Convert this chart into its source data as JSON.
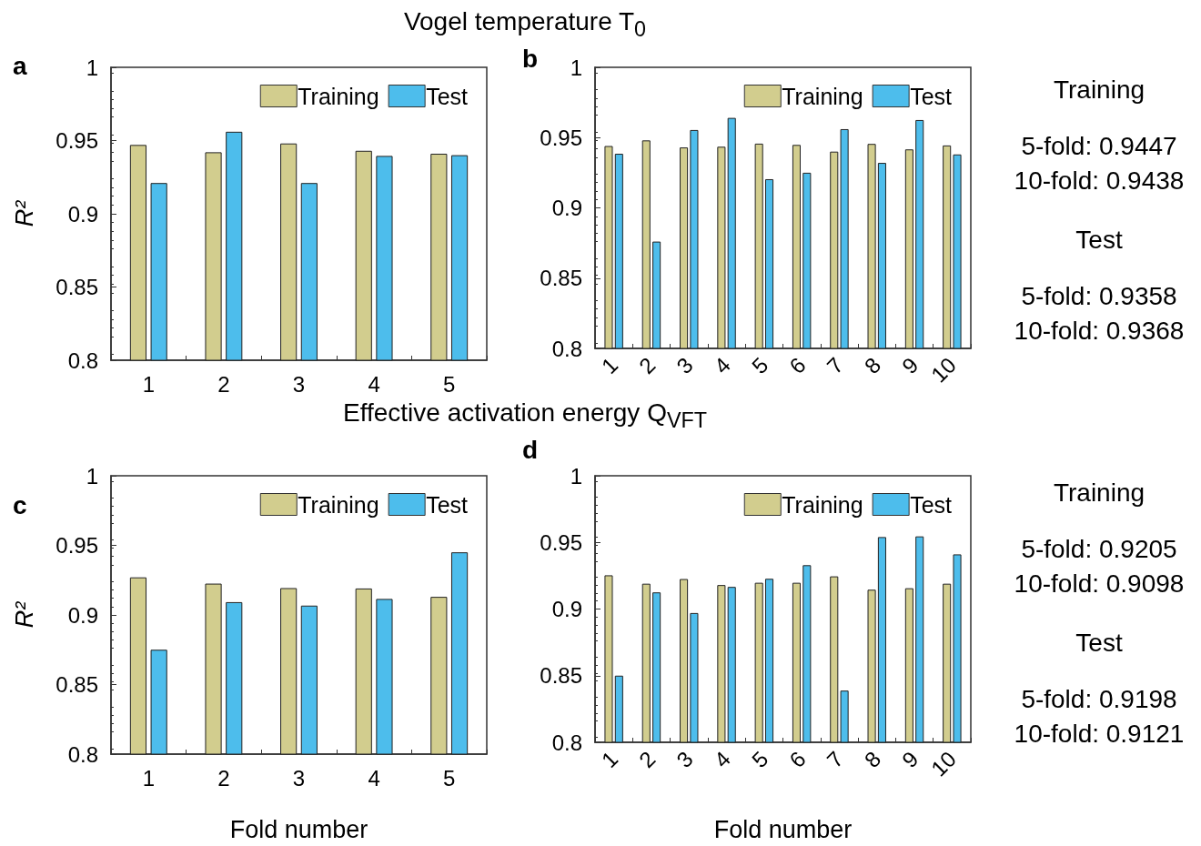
{
  "chart_data": [
    {
      "type": "bar",
      "title": "Vogel temperature T$_{0}$",
      "ylabel": "R²",
      "annotations": [
        "a"
      ],
      "categories": [
        "1",
        "2",
        "3",
        "4",
        "5"
      ],
      "series": [
        {
          "name": "Training",
          "color": "#d2cd8e",
          "values": [
            0.947,
            0.942,
            0.948,
            0.943,
            0.941
          ]
        },
        {
          "name": "Test",
          "color": "#4dbdec",
          "values": [
            0.921,
            0.956,
            0.921,
            0.9395,
            0.94
          ]
        }
      ],
      "ylim": [
        0.8,
        1
      ],
      "yticks": [
        0.8,
        0.85,
        0.9,
        0.95,
        1
      ],
      "legend": "top right"
    },
    {
      "type": "bar",
      "annotations": [
        "b",
        "Training",
        "5-fold: 0.9447",
        "10-fold: 0.9438",
        "Test",
        "5-fold: 0.9358",
        "10-fold: 0.9368"
      ],
      "categories": [
        "1",
        "2",
        "3",
        "4",
        "5",
        "6",
        "7",
        "8",
        "9",
        "10"
      ],
      "series": [
        {
          "name": "Training",
          "color": "#d2cd8e",
          "values": [
            0.944,
            0.948,
            0.943,
            0.9435,
            0.9457,
            0.9448,
            0.94,
            0.9455,
            0.9416,
            0.9444
          ]
        },
        {
          "name": "Test",
          "color": "#4dbdec",
          "values": [
            0.9385,
            0.876,
            0.9554,
            0.964,
            0.9204,
            0.925,
            0.956,
            0.932,
            0.9625,
            0.938
          ]
        }
      ],
      "ylim": [
        0.8,
        1
      ],
      "yticks": [
        0.8,
        0.85,
        0.9,
        0.95,
        1
      ],
      "legend": "top right"
    },
    {
      "type": "bar",
      "title": "Effective activation energy Q$_{VFT}$",
      "xlabel": "Fold number",
      "ylabel": "R²",
      "annotations": [
        "c"
      ],
      "categories": [
        "1",
        "2",
        "3",
        "4",
        "5"
      ],
      "series": [
        {
          "name": "Training",
          "color": "#d2cd8e",
          "values": [
            0.927,
            0.9225,
            0.9193,
            0.919,
            0.913
          ]
        },
        {
          "name": "Test",
          "color": "#4dbdec",
          "values": [
            0.875,
            0.9092,
            0.9067,
            0.9115,
            0.945
          ]
        }
      ],
      "ylim": [
        0.8,
        1
      ],
      "yticks": [
        0.8,
        0.85,
        0.9,
        0.95,
        1
      ],
      "legend": "top right"
    },
    {
      "type": "bar",
      "xlabel": "Fold number",
      "annotations": [
        "d",
        "Training",
        "5-fold: 0.9205",
        "10-fold: 0.9098",
        "Test",
        "5-fold: 0.9198",
        "10-fold: 0.9121"
      ],
      "categories": [
        "1",
        "2",
        "3",
        "4",
        "5",
        "6",
        "7",
        "8",
        "9",
        "10"
      ],
      "series": [
        {
          "name": "Training",
          "color": "#d2cd8e",
          "values": [
            0.9253,
            0.919,
            0.9225,
            0.918,
            0.9197,
            0.9197,
            0.9245,
            0.9145,
            0.9156,
            0.919
          ]
        },
        {
          "name": "Test",
          "color": "#4dbdec",
          "values": [
            0.85,
            0.9125,
            0.897,
            0.9166,
            0.9227,
            0.9329,
            0.8388,
            0.954,
            0.9545,
            0.941
          ]
        }
      ],
      "ylim": [
        0.8,
        1
      ],
      "yticks": [
        0.8,
        0.85,
        0.9,
        0.95,
        1
      ],
      "legend": "top right"
    }
  ]
}
